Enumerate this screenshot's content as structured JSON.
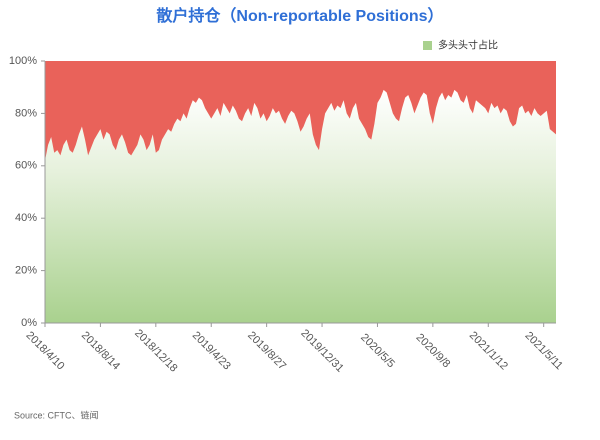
{
  "chart_data": {
    "type": "area",
    "title": "散户持仓（Non-reportable Positions）",
    "source": "Source: CFTC、链闻",
    "categories": [
      "2018/4/10",
      null,
      null,
      null,
      null,
      null,
      null,
      null,
      null,
      null,
      null,
      null,
      null,
      null,
      null,
      null,
      null,
      null,
      "2018/8/14",
      null,
      null,
      null,
      null,
      null,
      null,
      null,
      null,
      null,
      null,
      null,
      null,
      null,
      null,
      null,
      null,
      null,
      "2018/12/18",
      null,
      null,
      null,
      null,
      null,
      null,
      null,
      null,
      null,
      null,
      null,
      null,
      null,
      null,
      null,
      null,
      null,
      "2019/4/23",
      null,
      null,
      null,
      null,
      null,
      null,
      null,
      null,
      null,
      null,
      null,
      null,
      null,
      null,
      null,
      null,
      null,
      "2019/8/27",
      null,
      null,
      null,
      null,
      null,
      null,
      null,
      null,
      null,
      null,
      null,
      null,
      null,
      null,
      null,
      null,
      null,
      "2019/12/31",
      null,
      null,
      null,
      null,
      null,
      null,
      null,
      null,
      null,
      null,
      null,
      null,
      null,
      null,
      null,
      null,
      null,
      "2020/5/5",
      null,
      null,
      null,
      null,
      null,
      null,
      null,
      null,
      null,
      null,
      null,
      null,
      null,
      null,
      null,
      null,
      null,
      "2020/9/8",
      null,
      null,
      null,
      null,
      null,
      null,
      null,
      null,
      null,
      null,
      null,
      null,
      null,
      null,
      null,
      null,
      null,
      "2021/1/12",
      null,
      null,
      null,
      null,
      null,
      null,
      null,
      null,
      null,
      null,
      null,
      null,
      null,
      null,
      null,
      null,
      null,
      "2021/5/11",
      null,
      null,
      null,
      null
    ],
    "series": [
      {
        "name": "多头头寸占比",
        "color": "#a9d18e",
        "values": [
          62,
          68,
          71,
          65,
          66,
          64,
          68,
          70,
          66,
          65,
          68,
          72,
          75,
          70,
          64,
          67,
          70,
          72,
          74,
          70,
          73,
          72,
          68,
          66,
          70,
          72,
          69,
          65,
          64,
          66,
          68,
          72,
          70,
          66,
          68,
          72,
          65,
          66,
          70,
          72,
          74,
          73,
          76,
          78,
          77,
          80,
          78,
          82,
          85,
          84,
          86,
          85,
          82,
          80,
          78,
          80,
          82,
          79,
          84,
          82,
          80,
          83,
          81,
          78,
          77,
          80,
          82,
          79,
          84,
          82,
          78,
          80,
          77,
          79,
          82,
          80,
          81,
          78,
          76,
          79,
          81,
          80,
          77,
          73,
          75,
          78,
          80,
          72,
          68,
          66,
          74,
          80,
          82,
          84,
          81,
          83,
          82,
          85,
          80,
          78,
          82,
          84,
          78,
          76,
          74,
          71,
          70,
          76,
          84,
          86,
          89,
          88,
          84,
          80,
          78,
          77,
          82,
          86,
          87,
          84,
          80,
          83,
          86,
          88,
          87,
          80,
          76,
          82,
          86,
          88,
          85,
          87,
          86,
          89,
          88,
          85,
          84,
          87,
          82,
          80,
          85,
          84,
          83,
          82,
          80,
          84,
          82,
          83,
          80,
          82,
          81,
          77,
          75,
          76,
          82,
          83,
          80,
          81,
          79,
          82,
          80,
          79,
          80,
          81,
          74,
          73,
          72
        ]
      }
    ],
    "rest_color": "#e9625a",
    "ylim": [
      0,
      100
    ],
    "yticks": [
      {
        "value": 0,
        "label": "0%"
      },
      {
        "value": 20,
        "label": "20%"
      },
      {
        "value": 40,
        "label": "40%"
      },
      {
        "value": 60,
        "label": "60%"
      },
      {
        "value": 80,
        "label": "80%"
      },
      {
        "value": 100,
        "label": "100%"
      }
    ],
    "grid": false,
    "legend": "top-right"
  }
}
